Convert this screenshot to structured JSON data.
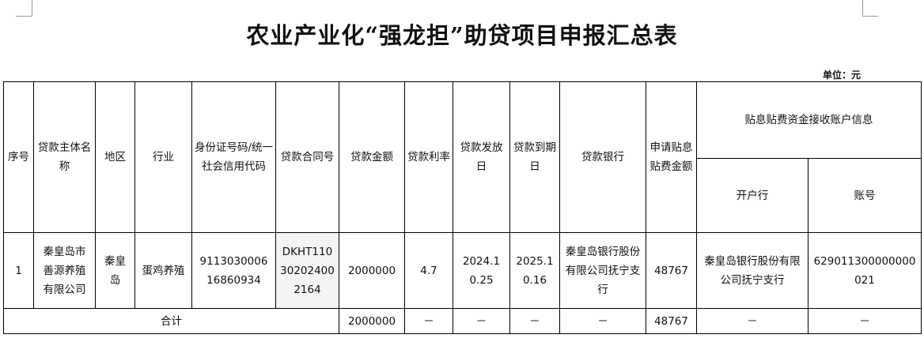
{
  "title": "农业产业化“强龙担”助贷项目申报汇总表",
  "unit": "单位：元",
  "headers": {
    "seq": "序号",
    "borrower": "贷款主体名称",
    "region": "地区",
    "industry": "行业",
    "id_code": "身份证号码/统一社会信用代码",
    "contract_no": "贷款合同号",
    "amount": "贷款金额",
    "rate": "贷款利率",
    "issue_date": "贷款发放日",
    "due_date": "贷款到期日",
    "bank": "贷款银行",
    "subsidy": "申请贴息贴费金额",
    "account_info": "贴息贴费资金接收账户信息",
    "open_bank": "开户行",
    "account_no": "账号"
  },
  "rows": [
    {
      "seq": "1",
      "borrower": "秦皇岛市善源养殖有限公司",
      "region": "秦皇岛",
      "industry": "蛋鸡养殖",
      "id_code": "911303000616860934",
      "contract_no": "DKHT110302024002164",
      "amount": "2000000",
      "rate": "4.7",
      "issue_date": "2024.10.25",
      "due_date": "2025.10.16",
      "bank": "秦皇岛银行股份有限公司抚宁支行",
      "subsidy": "48767",
      "open_bank": "秦皇岛银行股份有限公司抚宁支行",
      "account_no": "629011300000000021"
    }
  ],
  "total": {
    "label": "合计",
    "amount": "2000000",
    "rate": "－",
    "issue_date": "－",
    "due_date": "－",
    "bank": "－",
    "subsidy": "48767",
    "open_bank": "－",
    "account_no": "－"
  }
}
